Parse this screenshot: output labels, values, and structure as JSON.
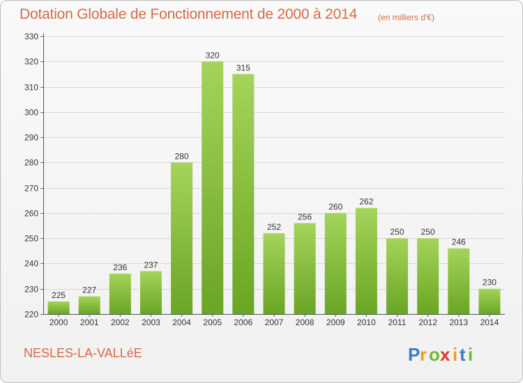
{
  "header": {
    "title": "Dotation Globale de Fonctionnement de 2000 à 2014",
    "subtitle": "(en milliers d'€)"
  },
  "footer": {
    "commune": "NESLES-LA-VALLéE",
    "logo_text": "Proxiti",
    "logo_letters": [
      "P",
      "r",
      "o",
      "x",
      "i",
      "t",
      "i"
    ],
    "logo_colors": [
      "#3b7dc4",
      "#f29a1f",
      "#6dbb2a",
      "#e0352b",
      "#f29a1f",
      "#3b7dc4",
      "#6dbb2a"
    ]
  },
  "colors": {
    "bar_light": "#a4d45a",
    "bar_dark": "#6aa524",
    "text": "#d76a44",
    "grid": "#d6d6d6"
  },
  "chart_data": {
    "type": "bar",
    "title": "Dotation Globale de Fonctionnement de 2000 à 2014",
    "subtitle": "(en milliers d'€)",
    "categories": [
      "2000",
      "2001",
      "2002",
      "2003",
      "2004",
      "2005",
      "2006",
      "2007",
      "2008",
      "2009",
      "2010",
      "2011",
      "2012",
      "2013",
      "2014"
    ],
    "values": [
      225,
      227,
      236,
      237,
      280,
      320,
      315,
      252,
      256,
      260,
      262,
      250,
      250,
      246,
      230
    ],
    "ylim": [
      220,
      330
    ],
    "yticks": [
      220,
      230,
      240,
      250,
      260,
      270,
      280,
      290,
      300,
      310,
      320,
      330
    ],
    "grid": true,
    "legend": "none"
  }
}
